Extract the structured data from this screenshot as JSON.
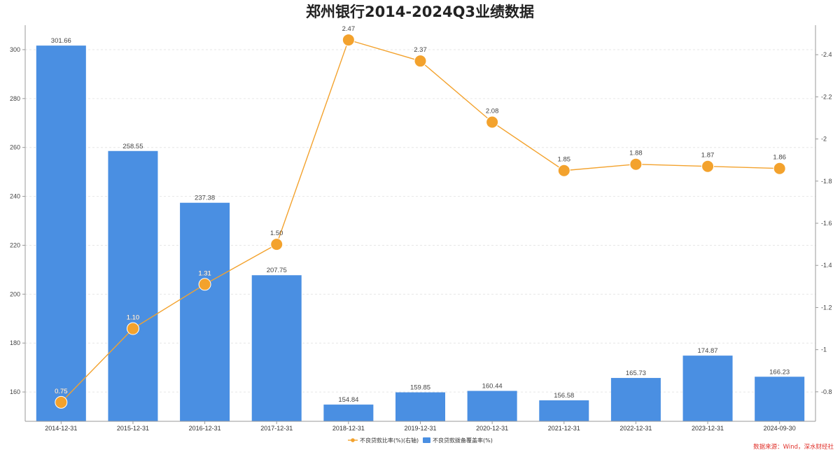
{
  "chart_data": {
    "type": "bar",
    "title": "郑州银行2014-2024Q3业绩数据",
    "categories": [
      "2014-12-31",
      "2015-12-31",
      "2016-12-31",
      "2017-12-31",
      "2018-12-31",
      "2019-12-31",
      "2020-12-31",
      "2021-12-31",
      "2022-12-31",
      "2023-12-31",
      "2024-09-30"
    ],
    "series": [
      {
        "name": "不良贷款拨备覆盖率(%)",
        "type": "bar",
        "axis": "left",
        "color": "#4a8fe2",
        "values": [
          301.66,
          258.55,
          237.38,
          207.75,
          154.84,
          159.85,
          160.44,
          156.58,
          165.73,
          174.87,
          166.23
        ],
        "labels": [
          "301.66",
          "258.55",
          "237.38",
          "207.75",
          "154.84",
          "159.85",
          "160.44",
          "156.58",
          "165.73",
          "174.87",
          "166.23"
        ]
      },
      {
        "name": "不良贷款比率(%)(右轴)",
        "type": "line",
        "axis": "right",
        "color": "#f3a22d",
        "values": [
          0.75,
          1.1,
          1.31,
          1.5,
          2.47,
          2.37,
          2.08,
          1.85,
          1.88,
          1.87,
          1.86
        ],
        "labels": [
          "0.75",
          "1.10",
          "1.31",
          "1.50",
          "2.47",
          "2.37",
          "2.08",
          "1.85",
          "1.88",
          "1.87",
          "1.86"
        ]
      }
    ],
    "y_left": {
      "ylim": [
        148,
        310
      ],
      "ticks": [
        160,
        180,
        200,
        220,
        240,
        260,
        280,
        300
      ]
    },
    "y_right": {
      "ylim": [
        0.66,
        2.54
      ],
      "ticks": [
        0.8,
        1,
        1.2,
        1.4,
        1.6,
        1.8,
        2,
        2.2,
        2.4
      ],
      "tick_labels": [
        "0.8",
        "1",
        "1.2",
        "1.4",
        "1.6",
        "1.8",
        "2",
        "2.2",
        "2.4"
      ]
    },
    "grid": true,
    "legend_position": "bottom-center"
  },
  "source_note": "数据来源：Wind，深水财经社"
}
